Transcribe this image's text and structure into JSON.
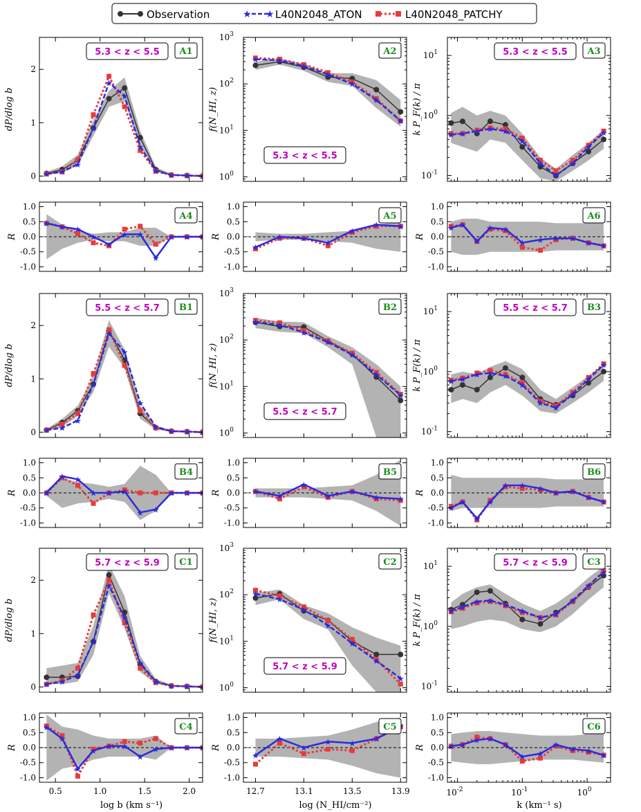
{
  "legend": {
    "observation": "Observation",
    "aton": "L40N2048_ATON",
    "patchy": "L40N2048_PATCHY"
  },
  "colors": {
    "observation": "#333333",
    "aton": "#2a2ae0",
    "patchy": "#e83a3a",
    "band": "#9a9a9a",
    "zlabel": "#c000c0",
    "panel_label": "#1a8c1a"
  },
  "axes_labels": {
    "col1_y": "dP/dlog b",
    "col2_y": "f(N_HI, z)",
    "col3_y": "k P_F(k) / π",
    "ratio_y": "R",
    "col1_x": "log b (km s⁻¹)",
    "col2_x": "log (N_HI/cm⁻²)",
    "col3_x": "k (km⁻¹ s)"
  },
  "chart_data": [
    {
      "panel": "A1",
      "type": "line",
      "zlabel": "5.3 < z < 5.5",
      "xlim": [
        0.32,
        2.15
      ],
      "ylim": [
        -0.1,
        2.6
      ],
      "yticks": [
        0,
        1,
        2
      ],
      "x": [
        0.4,
        0.575,
        0.75,
        0.925,
        1.1,
        1.275,
        1.45,
        1.625,
        1.8,
        1.975,
        2.15
      ],
      "observation": [
        0.05,
        0.12,
        0.3,
        0.9,
        1.45,
        1.65,
        0.72,
        0.12,
        0.02,
        0.01,
        0.0
      ],
      "aton": [
        0.04,
        0.08,
        0.22,
        0.9,
        1.75,
        1.5,
        0.55,
        0.1,
        0.02,
        0.01,
        0.0
      ],
      "patchy": [
        0.04,
        0.08,
        0.3,
        1.15,
        1.87,
        1.3,
        0.48,
        0.09,
        0.02,
        0.01,
        0.0
      ],
      "band_low": [
        0.02,
        0.06,
        0.2,
        0.75,
        1.3,
        1.4,
        0.55,
        0.08,
        0.01,
        0.0,
        0.0
      ],
      "band_high": [
        0.08,
        0.18,
        0.4,
        1.05,
        1.6,
        1.85,
        0.85,
        0.17,
        0.04,
        0.02,
        0.01
      ]
    },
    {
      "panel": "A2",
      "type": "line",
      "zlabel": "5.3 < z < 5.5",
      "log": true,
      "xlim": [
        12.6,
        13.95
      ],
      "ylim": [
        0.8,
        1000
      ],
      "x": [
        12.7,
        12.9,
        13.1,
        13.3,
        13.5,
        13.7,
        13.9
      ],
      "observation": [
        250,
        300,
        230,
        140,
        130,
        75,
        25
      ],
      "aton": [
        340,
        320,
        240,
        160,
        100,
        45,
        16
      ],
      "patchy": [
        360,
        340,
        260,
        175,
        110,
        48,
        16
      ],
      "band_low": [
        200,
        260,
        190,
        110,
        90,
        30,
        12
      ],
      "band_high": [
        300,
        350,
        270,
        170,
        170,
        120,
        45
      ]
    },
    {
      "panel": "A3",
      "type": "line",
      "zlabel": "5.3 < z < 5.5",
      "logx": true,
      "log": true,
      "xlim": [
        0.007,
        2.3
      ],
      "ylim": [
        0.08,
        20
      ],
      "x": [
        0.008,
        0.012,
        0.02,
        0.032,
        0.055,
        0.1,
        0.19,
        0.33,
        0.6,
        1.05,
        1.8
      ],
      "observation": [
        0.75,
        0.8,
        0.5,
        0.8,
        0.7,
        0.3,
        0.14,
        0.1,
        0.16,
        0.25,
        0.4
      ],
      "aton": [
        0.48,
        0.5,
        0.55,
        0.6,
        0.55,
        0.38,
        0.16,
        0.1,
        0.16,
        0.3,
        0.52
      ],
      "patchy": [
        0.5,
        0.5,
        0.57,
        0.62,
        0.6,
        0.42,
        0.18,
        0.12,
        0.18,
        0.32,
        0.55
      ],
      "band_low": [
        0.35,
        0.3,
        0.25,
        0.4,
        0.35,
        0.18,
        0.09,
        0.08,
        0.12,
        0.18,
        0.28
      ],
      "band_high": [
        1.1,
        1.4,
        1.0,
        1.2,
        1.0,
        0.5,
        0.2,
        0.13,
        0.22,
        0.35,
        0.58
      ]
    },
    {
      "panel": "A4",
      "type": "ratio",
      "xlim": [
        0.32,
        2.15
      ],
      "ylim": [
        -1.15,
        1.15
      ],
      "x": [
        0.4,
        0.575,
        0.75,
        0.925,
        1.1,
        1.275,
        1.45,
        1.625,
        1.8,
        1.975,
        2.15
      ],
      "aton": [
        0.45,
        0.33,
        0.25,
        0.0,
        -0.25,
        0.08,
        0.08,
        -0.7,
        0.0,
        0.0,
        0.0
      ],
      "patchy": [
        0.45,
        0.33,
        0.1,
        -0.2,
        -0.3,
        0.25,
        0.35,
        -0.25,
        0.0,
        0.0,
        0.0
      ],
      "band": [
        0.75,
        0.4,
        0.2,
        0.1,
        0.15,
        0.15,
        0.3,
        0.3,
        0.0,
        0.0,
        0.0
      ]
    },
    {
      "panel": "A5",
      "type": "ratio",
      "xlim": [
        12.6,
        13.95
      ],
      "ylim": [
        -1.15,
        1.15
      ],
      "x": [
        12.7,
        12.9,
        13.1,
        13.3,
        13.5,
        13.7,
        13.9
      ],
      "aton": [
        -0.35,
        0.0,
        -0.05,
        -0.2,
        0.2,
        0.4,
        0.35
      ],
      "patchy": [
        -0.4,
        -0.05,
        -0.05,
        -0.3,
        0.15,
        0.35,
        0.35
      ],
      "band": [
        0.15,
        0.1,
        0.1,
        0.15,
        0.2,
        0.4,
        0.5
      ]
    },
    {
      "panel": "A6",
      "type": "ratio",
      "logx": true,
      "xlim": [
        0.007,
        2.3
      ],
      "ylim": [
        -1.15,
        1.15
      ],
      "x": [
        0.008,
        0.012,
        0.02,
        0.032,
        0.055,
        0.1,
        0.19,
        0.33,
        0.6,
        1.05,
        1.8
      ],
      "aton": [
        0.3,
        0.4,
        -0.15,
        0.3,
        0.25,
        -0.2,
        -0.1,
        -0.05,
        -0.05,
        -0.2,
        -0.3
      ],
      "patchy": [
        0.35,
        0.4,
        -0.15,
        0.25,
        0.2,
        -0.35,
        -0.45,
        -0.1,
        -0.05,
        -0.2,
        -0.3
      ],
      "band": [
        0.5,
        0.6,
        0.6,
        0.5,
        0.5,
        0.5,
        0.5,
        0.45,
        0.45,
        0.45,
        0.45
      ]
    },
    {
      "panel": "B1",
      "type": "line",
      "zlabel": "5.5 < z < 5.7",
      "xlim": [
        0.32,
        2.15
      ],
      "ylim": [
        -0.1,
        2.6
      ],
      "yticks": [
        0,
        1,
        2
      ],
      "x": [
        0.4,
        0.575,
        0.75,
        0.925,
        1.1,
        1.275,
        1.45,
        1.625,
        1.8,
        1.975,
        2.15
      ],
      "observation": [
        0.04,
        0.18,
        0.4,
        0.9,
        1.9,
        1.35,
        0.35,
        0.08,
        0.02,
        0.01,
        0.0
      ],
      "aton": [
        0.04,
        0.08,
        0.22,
        0.9,
        1.85,
        1.5,
        0.55,
        0.1,
        0.02,
        0.01,
        0.0
      ],
      "patchy": [
        0.04,
        0.15,
        0.35,
        1.1,
        1.92,
        1.25,
        0.4,
        0.08,
        0.02,
        0.01,
        0.0
      ],
      "band_low": [
        0.02,
        0.1,
        0.3,
        0.75,
        1.6,
        1.2,
        0.25,
        0.05,
        0.01,
        0.0,
        0.0
      ],
      "band_high": [
        0.06,
        0.25,
        0.5,
        1.05,
        2.1,
        1.55,
        0.5,
        0.12,
        0.04,
        0.02,
        0.01
      ]
    },
    {
      "panel": "B2",
      "type": "line",
      "zlabel": "5.5 < z < 5.7",
      "log": true,
      "xlim": [
        12.6,
        13.95
      ],
      "ylim": [
        0.8,
        1000
      ],
      "x": [
        12.7,
        12.9,
        13.1,
        13.3,
        13.5,
        13.7,
        13.9
      ],
      "observation": [
        240,
        195,
        190,
        95,
        50,
        16,
        5
      ],
      "aton": [
        245,
        210,
        145,
        90,
        48,
        18,
        6.5
      ],
      "patchy": [
        265,
        235,
        160,
        95,
        52,
        20,
        6.8
      ],
      "band_low": [
        180,
        150,
        140,
        70,
        30,
        0.5,
        0.5
      ],
      "band_high": [
        300,
        250,
        240,
        120,
        70,
        30,
        10
      ]
    },
    {
      "panel": "B3",
      "type": "line",
      "zlabel": "5.5 < z < 5.7",
      "logx": true,
      "log": true,
      "xlim": [
        0.007,
        2.3
      ],
      "ylim": [
        0.08,
        20
      ],
      "x": [
        0.008,
        0.012,
        0.02,
        0.032,
        0.055,
        0.1,
        0.19,
        0.33,
        0.6,
        1.05,
        1.8
      ],
      "observation": [
        0.5,
        0.6,
        0.5,
        0.8,
        1.15,
        0.8,
        0.35,
        0.28,
        0.4,
        0.65,
        1.0
      ],
      "aton": [
        0.7,
        0.75,
        0.9,
        0.95,
        0.85,
        0.6,
        0.3,
        0.25,
        0.42,
        0.75,
        1.3
      ],
      "patchy": [
        0.72,
        0.78,
        0.95,
        1.05,
        0.9,
        0.65,
        0.32,
        0.27,
        0.45,
        0.8,
        1.35
      ],
      "band_low": [
        0.3,
        0.35,
        0.3,
        0.45,
        0.6,
        0.4,
        0.22,
        0.2,
        0.3,
        0.45,
        0.7
      ],
      "band_high": [
        0.9,
        1.0,
        0.9,
        1.2,
        1.5,
        1.1,
        0.5,
        0.35,
        0.55,
        0.85,
        1.3
      ]
    },
    {
      "panel": "B4",
      "type": "ratio",
      "xlim": [
        0.32,
        2.15
      ],
      "ylim": [
        -1.15,
        1.15
      ],
      "x": [
        0.4,
        0.575,
        0.75,
        0.925,
        1.1,
        1.275,
        1.45,
        1.625,
        1.8,
        1.975,
        2.15
      ],
      "aton": [
        0.0,
        0.55,
        0.45,
        0.0,
        0.0,
        0.05,
        -0.65,
        -0.55,
        0.0,
        0.0,
        0.0
      ],
      "patchy": [
        0.0,
        0.5,
        0.25,
        -0.35,
        0.0,
        0.1,
        0.0,
        0.0,
        0.0,
        0.0,
        0.0
      ],
      "band": [
        0.1,
        0.5,
        0.35,
        0.3,
        0.2,
        0.3,
        0.9,
        0.6,
        0.0,
        0.0,
        0.0
      ]
    },
    {
      "panel": "B5",
      "type": "ratio",
      "xlim": [
        12.6,
        13.95
      ],
      "ylim": [
        -1.15,
        1.15
      ],
      "x": [
        12.7,
        12.9,
        13.1,
        13.3,
        13.5,
        13.7,
        13.9
      ],
      "aton": [
        0.05,
        -0.1,
        0.28,
        -0.1,
        0.05,
        -0.15,
        -0.2
      ],
      "patchy": [
        0.05,
        -0.2,
        0.2,
        -0.15,
        0.05,
        -0.2,
        -0.25
      ],
      "band": [
        0.15,
        0.15,
        0.15,
        0.2,
        0.25,
        0.6,
        1.1
      ]
    },
    {
      "panel": "B6",
      "type": "ratio",
      "logx": true,
      "xlim": [
        0.007,
        2.3
      ],
      "ylim": [
        -1.15,
        1.15
      ],
      "x": [
        0.008,
        0.012,
        0.02,
        0.032,
        0.055,
        0.1,
        0.19,
        0.33,
        0.6,
        1.05,
        1.8
      ],
      "aton": [
        -0.5,
        -0.3,
        -0.85,
        -0.3,
        0.25,
        0.25,
        0.15,
        0.0,
        0.05,
        -0.15,
        -0.3
      ],
      "patchy": [
        -0.45,
        -0.3,
        -0.9,
        -0.25,
        0.2,
        0.15,
        0.1,
        0.0,
        0.05,
        -0.15,
        -0.3
      ],
      "band": [
        0.6,
        0.5,
        0.5,
        0.5,
        0.5,
        0.5,
        0.5,
        0.45,
        0.45,
        0.45,
        0.45
      ]
    },
    {
      "panel": "C1",
      "type": "line",
      "zlabel": "5.7 < z < 5.9",
      "xlim": [
        0.32,
        2.15
      ],
      "ylim": [
        -0.1,
        2.6
      ],
      "yticks": [
        0,
        1,
        2
      ],
      "x": [
        0.4,
        0.575,
        0.75,
        0.925,
        1.1,
        1.275,
        1.45,
        1.625,
        1.8,
        1.975,
        2.15
      ],
      "observation": [
        0.18,
        0.18,
        0.2,
        0.85,
        2.1,
        1.4,
        0.42,
        0.1,
        0.02,
        0.01,
        0.0
      ],
      "aton": [
        0.05,
        0.1,
        0.22,
        0.85,
        1.9,
        1.3,
        0.45,
        0.1,
        0.02,
        0.01,
        0.0
      ],
      "patchy": [
        0.05,
        0.12,
        0.35,
        1.35,
        2.0,
        1.2,
        0.35,
        0.08,
        0.02,
        0.01,
        0.0
      ],
      "band_low": [
        0.05,
        0.05,
        0.1,
        0.6,
        1.75,
        1.1,
        0.28,
        0.06,
        0.01,
        0.0,
        0.0
      ],
      "band_high": [
        0.35,
        0.4,
        0.45,
        1.15,
        2.3,
        1.7,
        0.58,
        0.15,
        0.04,
        0.02,
        0.01
      ]
    },
    {
      "panel": "C2",
      "type": "line",
      "zlabel": "5.7 < z < 5.9",
      "log": true,
      "xlim": [
        12.6,
        13.95
      ],
      "ylim": [
        0.8,
        1000
      ],
      "x": [
        12.7,
        12.9,
        13.1,
        13.3,
        13.5,
        13.7,
        13.9
      ],
      "observation": [
        85,
        105,
        45,
        28,
        10,
        5.2,
        5.2
      ],
      "aton": [
        105,
        80,
        48,
        22,
        9,
        3.8,
        1.6
      ],
      "patchy": [
        125,
        95,
        55,
        28,
        11,
        4.0,
        1.2
      ],
      "band_low": [
        60,
        80,
        30,
        18,
        3,
        0.5,
        0.5
      ],
      "band_high": [
        110,
        130,
        60,
        40,
        20,
        12,
        8
      ]
    },
    {
      "panel": "C3",
      "type": "line",
      "zlabel": "5.7 < z < 5.9",
      "logx": true,
      "log": true,
      "xlim": [
        0.007,
        2.3
      ],
      "ylim": [
        0.08,
        20
      ],
      "x": [
        0.008,
        0.012,
        0.02,
        0.032,
        0.055,
        0.1,
        0.19,
        0.33,
        0.6,
        1.05,
        1.8
      ],
      "observation": [
        1.9,
        2.3,
        3.7,
        3.9,
        2.4,
        1.3,
        1.1,
        1.7,
        2.6,
        4.5,
        7.0
      ],
      "aton": [
        1.8,
        2.1,
        2.6,
        2.7,
        2.3,
        1.8,
        1.4,
        1.6,
        2.7,
        4.8,
        8.0
      ],
      "patchy": [
        1.75,
        2.0,
        2.45,
        2.6,
        2.2,
        1.7,
        1.4,
        1.55,
        2.6,
        4.6,
        8.5
      ],
      "band_low": [
        0.9,
        1.0,
        1.2,
        1.3,
        1.2,
        0.9,
        0.8,
        1.0,
        1.6,
        2.8,
        4.5
      ],
      "band_high": [
        2.5,
        3.5,
        4.5,
        5.0,
        3.5,
        2.4,
        1.8,
        2.4,
        3.8,
        6.5,
        10.0
      ]
    },
    {
      "panel": "C4",
      "type": "ratio",
      "xlim": [
        0.32,
        2.15
      ],
      "ylim": [
        -1.15,
        1.15
      ],
      "x": [
        0.4,
        0.575,
        0.75,
        0.925,
        1.1,
        1.275,
        1.45,
        1.625,
        1.8,
        1.975,
        2.15
      ],
      "aton": [
        0.68,
        0.3,
        -0.7,
        -0.1,
        0.05,
        0.05,
        -0.3,
        -0.05,
        0.0,
        0.0,
        0.0
      ],
      "patchy": [
        0.72,
        0.4,
        -0.95,
        -0.05,
        0.05,
        0.2,
        0.15,
        0.3,
        0.0,
        0.0,
        0.0
      ],
      "band": [
        1.1,
        0.7,
        0.6,
        0.4,
        0.3,
        0.3,
        0.3,
        0.4,
        0.0,
        0.0,
        0.0
      ]
    },
    {
      "panel": "C5",
      "type": "ratio",
      "xlim": [
        12.6,
        13.95
      ],
      "ylim": [
        -1.15,
        1.15
      ],
      "x": [
        12.7,
        12.9,
        13.1,
        13.3,
        13.5,
        13.7,
        13.9
      ],
      "aton": [
        -0.25,
        0.3,
        0.0,
        0.2,
        0.15,
        0.3,
        0.7
      ],
      "patchy": [
        -0.55,
        0.15,
        -0.2,
        -0.05,
        -0.1,
        0.3,
        0.7
      ],
      "band": [
        0.3,
        0.3,
        0.35,
        0.4,
        0.6,
        0.85,
        1.0
      ]
    },
    {
      "panel": "C6",
      "type": "ratio",
      "logx": true,
      "xlim": [
        0.007,
        2.3
      ],
      "ylim": [
        -1.15,
        1.15
      ],
      "x": [
        0.008,
        0.012,
        0.02,
        0.032,
        0.055,
        0.1,
        0.19,
        0.33,
        0.6,
        1.05,
        1.8
      ],
      "aton": [
        0.05,
        0.1,
        0.25,
        0.3,
        0.1,
        -0.3,
        -0.2,
        0.1,
        -0.05,
        -0.1,
        -0.25
      ],
      "patchy": [
        0.05,
        0.1,
        0.35,
        0.3,
        0.1,
        -0.45,
        -0.35,
        0.05,
        -0.1,
        -0.15,
        -0.25
      ],
      "band": [
        0.45,
        0.5,
        0.55,
        0.55,
        0.5,
        0.45,
        0.4,
        0.4,
        0.4,
        0.45,
        0.5
      ]
    }
  ]
}
